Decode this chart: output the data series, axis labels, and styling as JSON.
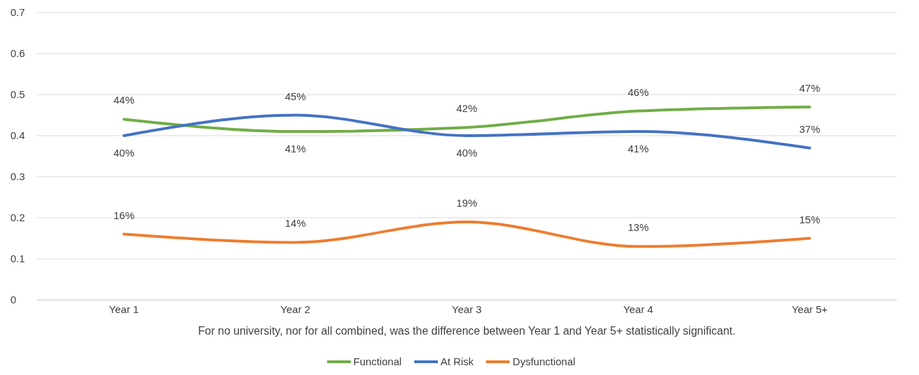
{
  "chart_data": {
    "type": "line",
    "xlabel": "For no university, nor for all combined,  was the difference  between Year 1 and Year 5+ statistically significant.",
    "categories": [
      "Year 1",
      "Year 2",
      "Year 3",
      "Year 4",
      "Year 5+"
    ],
    "series": [
      {
        "name": "Functional",
        "color": "#70ad47",
        "values": [
          0.44,
          0.41,
          0.42,
          0.46,
          0.47
        ],
        "value_labels": [
          "44%",
          "41%",
          "42%",
          "46%",
          "47%"
        ]
      },
      {
        "name": "At Risk",
        "color": "#4472c4",
        "values": [
          0.4,
          0.45,
          0.4,
          0.41,
          0.37
        ],
        "value_labels": [
          "40%",
          "45%",
          "40%",
          "41%",
          "37%"
        ]
      },
      {
        "name": "Dysfunctional",
        "color": "#ed7d31",
        "values": [
          0.16,
          0.14,
          0.19,
          0.13,
          0.15
        ],
        "value_labels": [
          "16%",
          "14%",
          "19%",
          "13%",
          "15%"
        ]
      }
    ],
    "ylim": [
      0,
      0.7
    ],
    "yticks": [
      0,
      0.1,
      0.2,
      0.3,
      0.4,
      0.5,
      0.6,
      0.7
    ],
    "grid": "y",
    "legend": "bottom",
    "marker": "none",
    "line_style": "solid"
  }
}
